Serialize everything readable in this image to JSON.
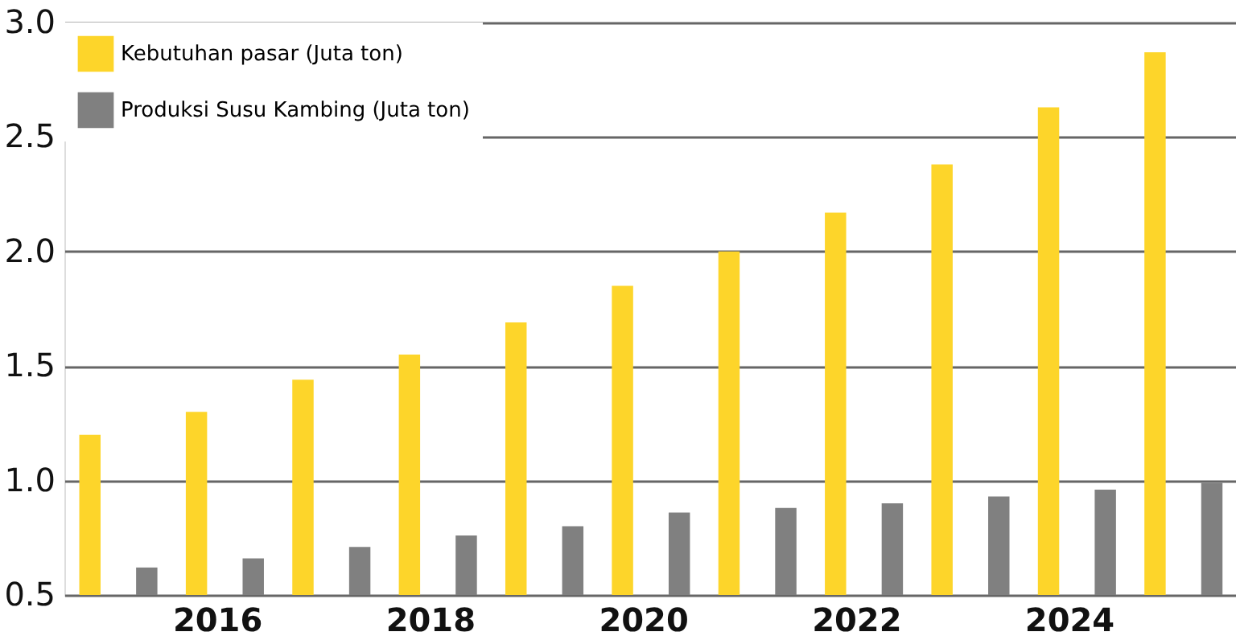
{
  "chart_data": {
    "type": "bar",
    "categories": [
      null,
      "2016",
      null,
      "2018",
      null,
      "2020",
      null,
      "2022",
      null,
      "2024",
      null
    ],
    "series": [
      {
        "name": "Kebutuhan pasar (Juta ton)",
        "color": "#fdd52a",
        "values": [
          1.2,
          1.3,
          1.44,
          1.55,
          1.69,
          1.85,
          2.0,
          2.17,
          2.38,
          2.63,
          2.87
        ]
      },
      {
        "name": "Produksi Susu Kambing (Juta ton)",
        "color": "#808080",
        "values": [
          0.62,
          0.66,
          0.71,
          0.76,
          0.8,
          0.86,
          0.88,
          0.9,
          0.93,
          0.96,
          0.99
        ]
      }
    ],
    "ylim": [
      0.5,
      3.0
    ],
    "yticks": [
      {
        "value": 0.5,
        "label": "0.5"
      },
      {
        "value": 1.0,
        "label": "1.0"
      },
      {
        "value": 1.5,
        "label": "1.5"
      },
      {
        "value": 2.0,
        "label": "2.0"
      },
      {
        "value": 2.5,
        "label": "2.5"
      },
      {
        "value": 3.0,
        "label": "3.0"
      }
    ],
    "grid": "y",
    "legend": "top left"
  }
}
